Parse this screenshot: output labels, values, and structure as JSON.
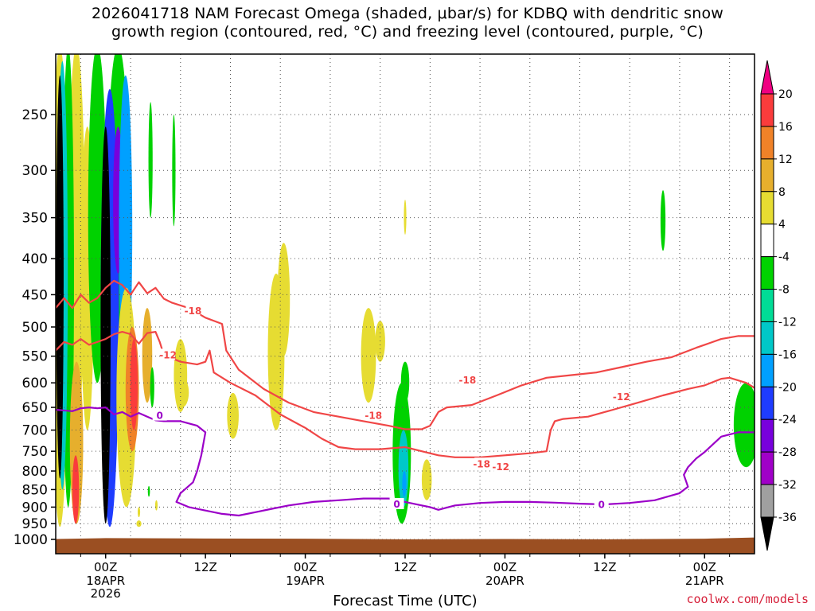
{
  "title_line1": "2026041718 NAM Forecast Omega (shaded, μbar/s) for KDBQ with dendritic snow",
  "title_line2": "growth region (contoured, red, °C) and freezing level (contoured, purple, °C)",
  "credit": "coolwx.com/models",
  "chart_data": {
    "type": "heatmap",
    "title": "2026041718 NAM Forecast Omega (shaded, μbar/s) for KDBQ with dendritic snow growth region (contoured, red, °C) and freezing level (contoured, purple, °C)",
    "xlabel": "Forecast Time (UTC)",
    "ylabel": "",
    "x_range_hours": [
      -6,
      78
    ],
    "x_ticks": [
      {
        "hour": 0,
        "label": "00Z",
        "sub": [
          "18APR",
          "2026"
        ]
      },
      {
        "hour": 12,
        "label": "12Z",
        "sub": []
      },
      {
        "hour": 24,
        "label": "00Z",
        "sub": [
          "19APR"
        ]
      },
      {
        "hour": 36,
        "label": "12Z",
        "sub": []
      },
      {
        "hour": 48,
        "label": "00Z",
        "sub": [
          "20APR"
        ]
      },
      {
        "hour": 60,
        "label": "12Z",
        "sub": []
      },
      {
        "hour": 72,
        "label": "00Z",
        "sub": [
          "21APR"
        ]
      }
    ],
    "y_scale": "log-pressure (hPa)",
    "y_range": [
      1050,
      200
    ],
    "y_ticks": [
      250,
      300,
      350,
      400,
      450,
      500,
      550,
      600,
      650,
      700,
      750,
      800,
      850,
      900,
      950,
      1000
    ],
    "grid": true,
    "colorbar": {
      "levels": [
        -36,
        -32,
        -28,
        -24,
        -20,
        -16,
        -12,
        -8,
        -4,
        4,
        8,
        12,
        16,
        20
      ],
      "colors": [
        "#000000",
        "#a0a0a0",
        "#a000c8",
        "#7800dc",
        "#1e3cff",
        "#00a0ff",
        "#00c8c8",
        "#00dc96",
        "#00d200",
        "#ffffff",
        "#e6dc32",
        "#e6af2d",
        "#f08228",
        "#fa3c3c",
        "#f00082"
      ]
    },
    "contour_labels": {
      "dgz": [
        "-18",
        "-12",
        "-18",
        "-18",
        "-12",
        "-12",
        "-18"
      ],
      "freezing": [
        "0",
        "0",
        "0"
      ]
    },
    "series": [
      {
        "name": "-18",
        "color": "#f04646",
        "points": [
          [
            -6,
            470
          ],
          [
            -5,
            455
          ],
          [
            -4,
            470
          ],
          [
            -3,
            450
          ],
          [
            -2,
            462
          ],
          [
            -1,
            455
          ],
          [
            0,
            440
          ],
          [
            1,
            430
          ],
          [
            2,
            436
          ],
          [
            3,
            450
          ],
          [
            4,
            432
          ],
          [
            5,
            448
          ],
          [
            6,
            440
          ],
          [
            7,
            456
          ],
          [
            8,
            462
          ],
          [
            10,
            470
          ],
          [
            12,
            485
          ],
          [
            14,
            495
          ],
          [
            14.5,
            540
          ],
          [
            16,
            575
          ],
          [
            19,
            612
          ],
          [
            22,
            640
          ],
          [
            25,
            660
          ],
          [
            28,
            670
          ],
          [
            31,
            680
          ],
          [
            34,
            690
          ],
          [
            36,
            698
          ],
          [
            38,
            698
          ],
          [
            39,
            690
          ],
          [
            40,
            660
          ],
          [
            41,
            650
          ],
          [
            44,
            645
          ],
          [
            47,
            625
          ],
          [
            50,
            605
          ],
          [
            53,
            590
          ],
          [
            56,
            585
          ],
          [
            59,
            580
          ],
          [
            62,
            570
          ],
          [
            65,
            560
          ],
          [
            68,
            552
          ],
          [
            71,
            535
          ],
          [
            74,
            520
          ],
          [
            76,
            515
          ],
          [
            78,
            515
          ]
        ]
      },
      {
        "name": "-12",
        "color": "#f04646",
        "points": [
          [
            -6,
            540
          ],
          [
            -5,
            525
          ],
          [
            -4,
            530
          ],
          [
            -3,
            520
          ],
          [
            -2,
            530
          ],
          [
            -1,
            525
          ],
          [
            0,
            520
          ],
          [
            1,
            512
          ],
          [
            2,
            508
          ],
          [
            3,
            512
          ],
          [
            4,
            528
          ],
          [
            5,
            510
          ],
          [
            6,
            508
          ],
          [
            6.5,
            525
          ],
          [
            7,
            548
          ],
          [
            9,
            560
          ],
          [
            11,
            565
          ],
          [
            12,
            560
          ],
          [
            12.5,
            540
          ],
          [
            13,
            580
          ],
          [
            15,
            600
          ],
          [
            18,
            625
          ],
          [
            21,
            665
          ],
          [
            24,
            695
          ],
          [
            26,
            720
          ],
          [
            28,
            740
          ],
          [
            30,
            745
          ],
          [
            33,
            745
          ],
          [
            36,
            740
          ],
          [
            38,
            750
          ],
          [
            40,
            760
          ],
          [
            42,
            765
          ],
          [
            45,
            765
          ],
          [
            48,
            760
          ],
          [
            51,
            755
          ],
          [
            53,
            750
          ],
          [
            53.5,
            700
          ],
          [
            54,
            680
          ],
          [
            55,
            675
          ],
          [
            58,
            670
          ],
          [
            61,
            655
          ],
          [
            64,
            640
          ],
          [
            67,
            625
          ],
          [
            70,
            612
          ],
          [
            72,
            605
          ],
          [
            74,
            592
          ],
          [
            75,
            590
          ],
          [
            77,
            600
          ],
          [
            78,
            610
          ]
        ]
      },
      {
        "name": "0",
        "color": "#9b00c8",
        "points": [
          [
            -6,
            655
          ],
          [
            -4,
            658
          ],
          [
            -3,
            652
          ],
          [
            -2,
            650
          ],
          [
            -1,
            652
          ],
          [
            0,
            650
          ],
          [
            1,
            665
          ],
          [
            2,
            660
          ],
          [
            3,
            670
          ],
          [
            4,
            662
          ],
          [
            5,
            670
          ],
          [
            6,
            678
          ],
          [
            7,
            680
          ],
          [
            9,
            680
          ],
          [
            11,
            690
          ],
          [
            12,
            705
          ],
          [
            11.5,
            760
          ],
          [
            11,
            800
          ],
          [
            10.5,
            830
          ],
          [
            9,
            860
          ],
          [
            8.5,
            885
          ],
          [
            10,
            900
          ],
          [
            12,
            910
          ],
          [
            14,
            920
          ],
          [
            16,
            925
          ],
          [
            18,
            915
          ],
          [
            20,
            905
          ],
          [
            22,
            895
          ],
          [
            25,
            885
          ],
          [
            28,
            880
          ],
          [
            31,
            875
          ],
          [
            34,
            875
          ],
          [
            36,
            885
          ],
          [
            38,
            895
          ],
          [
            39,
            900
          ],
          [
            40,
            908
          ],
          [
            42,
            895
          ],
          [
            45,
            888
          ],
          [
            48,
            885
          ],
          [
            51,
            885
          ],
          [
            54,
            887
          ],
          [
            57,
            890
          ],
          [
            60,
            892
          ],
          [
            63,
            888
          ],
          [
            66,
            880
          ],
          [
            69,
            860
          ],
          [
            70,
            842
          ],
          [
            69.5,
            810
          ],
          [
            70,
            790
          ],
          [
            71,
            768
          ],
          [
            72,
            752
          ],
          [
            74,
            715
          ],
          [
            76,
            705
          ],
          [
            78,
            705
          ]
        ]
      }
    ]
  }
}
